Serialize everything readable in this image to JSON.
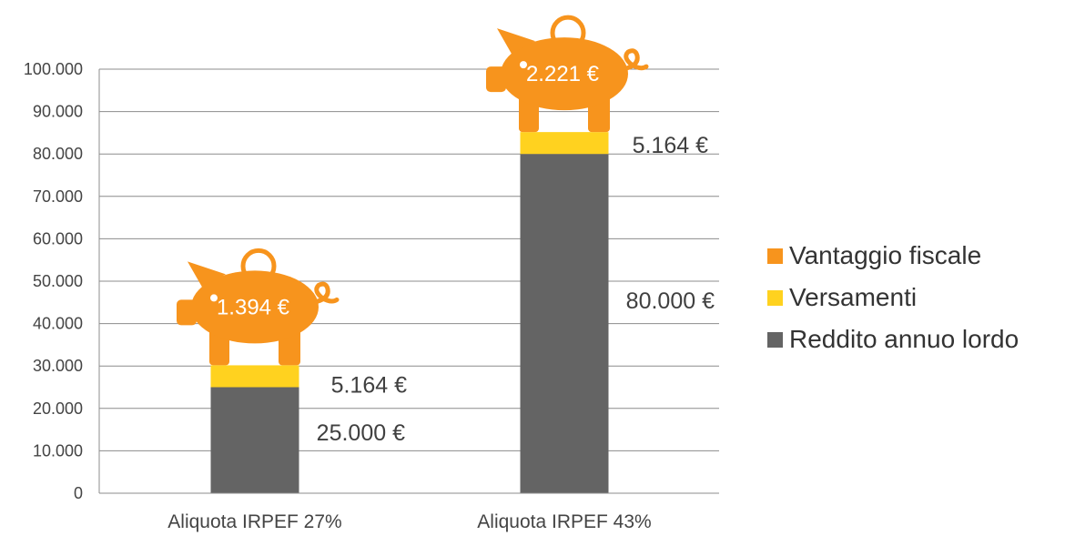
{
  "chart_data": {
    "type": "bar",
    "stacked": true,
    "categories": [
      "Aliquota IRPEF 27%",
      "Aliquota IRPEF 43%"
    ],
    "series": [
      {
        "name": "Reddito annuo lordo",
        "values": [
          25000,
          80000
        ],
        "color": "#646464"
      },
      {
        "name": "Versamenti",
        "values": [
          5164,
          5164
        ],
        "color": "#FFD21F"
      },
      {
        "name": "Vantaggio fiscale",
        "values": [
          1394,
          2221
        ],
        "color": "#F7941D"
      }
    ],
    "ylim": [
      0,
      100000
    ],
    "yticks": [
      0,
      10000,
      20000,
      30000,
      40000,
      50000,
      60000,
      70000,
      80000,
      90000,
      100000
    ],
    "ytick_labels": [
      "0",
      "10.000",
      "20.000",
      "30.000",
      "40.000",
      "50.000",
      "60.000",
      "70.000",
      "80.000",
      "90.000",
      "100.000"
    ],
    "data_labels": {
      "income": [
        "25.000 €",
        "80.000 €"
      ],
      "contributions": [
        "5.164 €",
        "5.164 €"
      ],
      "tax_benefit": [
        "1.394 €",
        "2.221 €"
      ]
    },
    "grid": true,
    "legend_position": "right",
    "tax_benefit_marker_icon": "piggy-bank-icon"
  },
  "legend": [
    {
      "label": "Vantaggio fiscale",
      "color": "#F7941D"
    },
    {
      "label": "Versamenti",
      "color": "#FFD21F"
    },
    {
      "label": "Reddito annuo lordo",
      "color": "#646464"
    }
  ]
}
